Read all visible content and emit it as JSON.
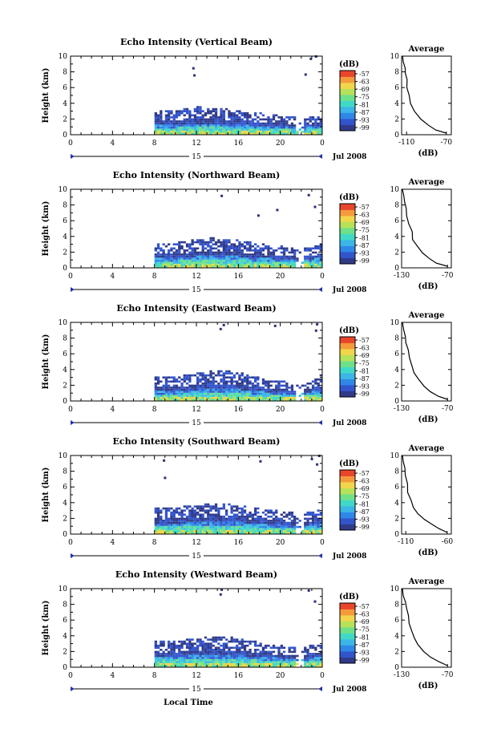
{
  "figure": {
    "x_axis_label": "Local Time",
    "date_label": "Jul 2008",
    "day_label": "15",
    "x_ticks": [
      "0",
      "4",
      "8",
      "12",
      "16",
      "20",
      "0"
    ],
    "y_axis_label": "Height (km)",
    "y_ticks": [
      "0",
      "2",
      "4",
      "6",
      "8",
      "10"
    ],
    "colorbar_unit": "(dB)",
    "colorbar_ticks": [
      "-57",
      "-63",
      "-69",
      "-75",
      "-81",
      "-87",
      "-93",
      "-99"
    ],
    "colorbar_colors": [
      "#303a88",
      "#3355cc",
      "#2f87e8",
      "#3bb6e6",
      "#40d9c8",
      "#6fe08a",
      "#b6e15a",
      "#f1d64b",
      "#f59a3b",
      "#e8452b"
    ],
    "profile_title": "Average",
    "profile_xlabel": "(dB)",
    "echo_base_color": "#2b3377"
  },
  "chart_data": [
    {
      "type": "heatmap",
      "title": "Echo Intensity (Vertical Beam)",
      "xlabel": "Local Time",
      "ylabel": "Height (km)",
      "xlim": [
        0,
        24
      ],
      "ylim": [
        0,
        10
      ],
      "observation_window_hours": [
        8,
        24
      ],
      "echo_top_km": [
        [
          8,
          3.0
        ],
        [
          10,
          3.1
        ],
        [
          12,
          3.4
        ],
        [
          14,
          3.3
        ],
        [
          16,
          2.9
        ],
        [
          18,
          2.6
        ],
        [
          20,
          2.3
        ],
        [
          22,
          2.0
        ],
        [
          24,
          2.4
        ]
      ],
      "scattered_echo": [
        [
          11.6,
          8.3
        ],
        [
          11.7,
          7.4
        ],
        [
          22.3,
          7.5
        ],
        [
          22.8,
          9.5
        ],
        [
          23.3,
          9.8
        ]
      ],
      "profile": {
        "title": "Average",
        "xlabel": "(dB)",
        "xticks": [
          "-110",
          "-70"
        ],
        "xlim": [
          -115,
          -65
        ],
        "x": [
          -114,
          -113,
          -112,
          -111,
          -110,
          -109,
          -108,
          -106,
          -102,
          -95,
          -88,
          -80,
          -70
        ],
        "y": [
          10,
          9.3,
          8.5,
          7.8,
          7.0,
          6.0,
          5.0,
          4.0,
          3.0,
          2.0,
          1.2,
          0.6,
          0.2
        ]
      }
    },
    {
      "type": "heatmap",
      "title": "Echo Intensity (Northward Beam)",
      "xlabel": "Local Time",
      "ylabel": "Height (km)",
      "xlim": [
        0,
        24
      ],
      "ylim": [
        0,
        10
      ],
      "observation_window_hours": [
        8,
        24
      ],
      "echo_top_km": [
        [
          8,
          3.0
        ],
        [
          10,
          3.1
        ],
        [
          12,
          3.5
        ],
        [
          14,
          3.8
        ],
        [
          16,
          3.4
        ],
        [
          18,
          2.9
        ],
        [
          20,
          2.6
        ],
        [
          22,
          2.3
        ],
        [
          24,
          3.0
        ]
      ],
      "scattered_echo": [
        [
          14.3,
          9.0
        ],
        [
          17.8,
          6.5
        ],
        [
          19.6,
          7.2
        ],
        [
          22.6,
          9.1
        ],
        [
          23.2,
          7.6
        ]
      ],
      "profile": {
        "title": "Average",
        "xlabel": "(dB)",
        "xticks": [
          "-130",
          "-70"
        ],
        "xlim": [
          -130,
          -65
        ],
        "x": [
          -129,
          -128,
          -126,
          -125,
          -123,
          -120,
          -117,
          -115,
          -110,
          -102,
          -94,
          -84,
          -70
        ],
        "y": [
          10,
          9.2,
          8.4,
          7.6,
          6.6,
          5.6,
          4.6,
          3.6,
          2.8,
          1.9,
          1.2,
          0.6,
          0.2
        ]
      }
    },
    {
      "type": "heatmap",
      "title": "Echo Intensity (Eastward Beam)",
      "xlabel": "Local Time",
      "ylabel": "Height (km)",
      "xlim": [
        0,
        24
      ],
      "ylim": [
        0,
        10
      ],
      "observation_window_hours": [
        8,
        24
      ],
      "echo_top_km": [
        [
          8,
          3.0
        ],
        [
          10,
          3.0
        ],
        [
          12,
          3.4
        ],
        [
          14,
          3.8
        ],
        [
          16,
          3.5
        ],
        [
          18,
          2.8
        ],
        [
          20,
          2.4
        ],
        [
          22,
          2.1
        ],
        [
          24,
          3.4
        ]
      ],
      "scattered_echo": [
        [
          14.2,
          9.0
        ],
        [
          14.5,
          9.5
        ],
        [
          19.4,
          9.4
        ],
        [
          23.3,
          8.8
        ],
        [
          23.4,
          9.6
        ]
      ],
      "profile": {
        "title": "Average",
        "xlabel": "(dB)",
        "xticks": [
          "-130",
          "-70"
        ],
        "xlim": [
          -130,
          -65
        ],
        "x": [
          -129,
          -128,
          -126,
          -124,
          -122,
          -120,
          -117,
          -113,
          -108,
          -100,
          -92,
          -82,
          -70
        ],
        "y": [
          10,
          9.0,
          8.2,
          7.4,
          6.5,
          5.5,
          4.5,
          3.6,
          2.8,
          1.9,
          1.2,
          0.6,
          0.2
        ]
      }
    },
    {
      "type": "heatmap",
      "title": "Echo Intensity (Southward Beam)",
      "xlabel": "Local Time",
      "ylabel": "Height (km)",
      "xlim": [
        0,
        24
      ],
      "ylim": [
        0,
        10
      ],
      "observation_window_hours": [
        8,
        24
      ],
      "echo_top_km": [
        [
          8,
          3.2
        ],
        [
          10,
          3.3
        ],
        [
          12,
          3.6
        ],
        [
          14,
          3.9
        ],
        [
          16,
          3.5
        ],
        [
          18,
          3.1
        ],
        [
          20,
          2.8
        ],
        [
          22,
          2.5
        ],
        [
          24,
          3.2
        ]
      ],
      "scattered_echo": [
        [
          8.8,
          9.2
        ],
        [
          8.9,
          7.0
        ],
        [
          18.0,
          9.1
        ],
        [
          22.9,
          9.4
        ],
        [
          23.4,
          8.7
        ],
        [
          23.6,
          9.8
        ]
      ],
      "profile": {
        "title": "Average",
        "xlabel": "(dB)",
        "xticks": [
          "-110",
          "-60"
        ],
        "xlim": [
          -115,
          -55
        ],
        "x": [
          -114,
          -113,
          -111,
          -110,
          -108,
          -107,
          -104,
          -100,
          -95,
          -88,
          -80,
          -70,
          -60
        ],
        "y": [
          10,
          9.2,
          8.4,
          7.5,
          6.4,
          5.3,
          4.3,
          3.4,
          2.6,
          1.9,
          1.3,
          0.7,
          0.2
        ]
      }
    },
    {
      "type": "heatmap",
      "title": "Echo Intensity (Westward Beam)",
      "xlabel": "Local Time",
      "ylabel": "Height (km)",
      "xlim": [
        0,
        24
      ],
      "ylim": [
        0,
        10
      ],
      "observation_window_hours": [
        8,
        24
      ],
      "echo_top_km": [
        [
          8,
          3.2
        ],
        [
          10,
          3.3
        ],
        [
          12,
          3.5
        ],
        [
          14,
          3.9
        ],
        [
          16,
          3.5
        ],
        [
          18,
          3.0
        ],
        [
          20,
          2.7
        ],
        [
          22,
          2.4
        ],
        [
          24,
          3.0
        ]
      ],
      "scattered_echo": [
        [
          14.2,
          9.1
        ],
        [
          14.3,
          9.7
        ],
        [
          22.6,
          9.6
        ],
        [
          23.2,
          8.2
        ]
      ],
      "profile": {
        "title": "Average",
        "xlabel": "(dB)",
        "xticks": [
          "-130",
          "-70"
        ],
        "xlim": [
          -130,
          -65
        ],
        "x": [
          -129,
          -128,
          -126,
          -124,
          -122,
          -120,
          -117,
          -113,
          -108,
          -100,
          -92,
          -82,
          -70
        ],
        "y": [
          10,
          9.1,
          8.3,
          7.5,
          6.6,
          5.6,
          4.6,
          3.7,
          2.9,
          2.0,
          1.3,
          0.7,
          0.2
        ]
      }
    }
  ]
}
